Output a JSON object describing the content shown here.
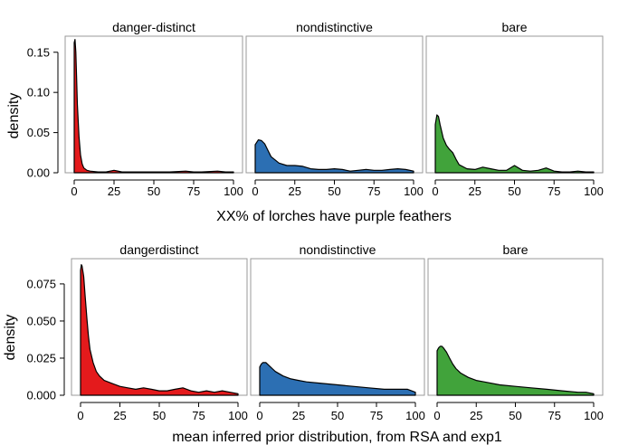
{
  "chart_data": [
    {
      "type": "area",
      "xlabel": "XX% of lorches have purple feathers",
      "ylabel": "density",
      "xlim": [
        0,
        100
      ],
      "ylim": [
        0,
        0.17
      ],
      "x_ticks": [
        0,
        25,
        50,
        75,
        100
      ],
      "y_ticks": [
        0,
        0.05,
        0.1,
        0.15
      ],
      "y_tick_labels": [
        "0.00",
        "0.05",
        "0.10",
        "0.15"
      ],
      "grid": false,
      "legend": "none",
      "panels": [
        {
          "name": "danger-distinct",
          "color": "#e41a1c",
          "x": [
            0,
            0.5,
            1,
            1.5,
            2,
            3,
            4,
            5,
            6,
            8,
            10,
            15,
            20,
            25,
            30,
            40,
            50,
            60,
            70,
            75,
            80,
            90,
            95,
            100
          ],
          "y": [
            0.162,
            0.166,
            0.15,
            0.12,
            0.085,
            0.045,
            0.022,
            0.011,
            0.006,
            0.003,
            0.002,
            0.001,
            0.001,
            0.003,
            0.001,
            0.001,
            0.001,
            0.001,
            0.002,
            0.001,
            0.001,
            0.002,
            0.001,
            0.001
          ]
        },
        {
          "name": "nondistinctive",
          "color": "#2c6fb3",
          "x": [
            0,
            2,
            4,
            6,
            8,
            10,
            15,
            20,
            25,
            30,
            35,
            40,
            45,
            50,
            55,
            60,
            65,
            70,
            75,
            80,
            85,
            90,
            95,
            100
          ],
          "y": [
            0.035,
            0.041,
            0.04,
            0.036,
            0.028,
            0.02,
            0.012,
            0.009,
            0.009,
            0.008,
            0.005,
            0.004,
            0.004,
            0.005,
            0.004,
            0.002,
            0.003,
            0.004,
            0.003,
            0.003,
            0.004,
            0.005,
            0.004,
            0.002
          ]
        },
        {
          "name": "bare",
          "color": "#41a33b",
          "x": [
            0,
            1,
            2,
            3,
            5,
            7,
            9,
            11,
            13,
            15,
            20,
            25,
            30,
            35,
            40,
            45,
            50,
            55,
            60,
            65,
            70,
            75,
            80,
            85,
            90,
            95,
            100
          ],
          "y": [
            0.06,
            0.072,
            0.07,
            0.06,
            0.043,
            0.034,
            0.029,
            0.025,
            0.017,
            0.01,
            0.005,
            0.004,
            0.007,
            0.005,
            0.003,
            0.003,
            0.009,
            0.003,
            0.002,
            0.003,
            0.006,
            0.002,
            0.001,
            0.001,
            0.002,
            0.001,
            0.001
          ]
        }
      ]
    },
    {
      "type": "area",
      "xlabel": "mean inferred prior distribution, from RSA and exp1",
      "ylabel": "density",
      "xlim": [
        0,
        100
      ],
      "ylim": [
        0,
        0.092
      ],
      "x_ticks": [
        0,
        25,
        50,
        75,
        100
      ],
      "y_ticks": [
        0,
        0.025,
        0.05,
        0.075
      ],
      "y_tick_labels": [
        "0.000",
        "0.025",
        "0.050",
        "0.075"
      ],
      "grid": false,
      "legend": "none",
      "panels": [
        {
          "name": "dangerdistinct",
          "color": "#e41a1c",
          "x": [
            0,
            0.5,
            1,
            2,
            3,
            4,
            5,
            6,
            8,
            10,
            12,
            15,
            20,
            25,
            30,
            35,
            40,
            45,
            50,
            55,
            60,
            65,
            70,
            75,
            80,
            85,
            90,
            95,
            100
          ],
          "y": [
            0.084,
            0.088,
            0.087,
            0.08,
            0.066,
            0.052,
            0.04,
            0.031,
            0.022,
            0.016,
            0.013,
            0.01,
            0.008,
            0.006,
            0.005,
            0.004,
            0.005,
            0.004,
            0.003,
            0.003,
            0.004,
            0.005,
            0.003,
            0.002,
            0.003,
            0.002,
            0.003,
            0.002,
            0.001
          ]
        },
        {
          "name": "nondistinctive",
          "color": "#2c6fb3",
          "x": [
            0,
            1,
            2,
            4,
            6,
            8,
            10,
            15,
            20,
            25,
            30,
            40,
            50,
            60,
            70,
            80,
            90,
            95,
            100
          ],
          "y": [
            0.019,
            0.021,
            0.022,
            0.022,
            0.02,
            0.018,
            0.016,
            0.013,
            0.011,
            0.01,
            0.009,
            0.008,
            0.007,
            0.006,
            0.005,
            0.004,
            0.004,
            0.004,
            0.002
          ]
        },
        {
          "name": "bare",
          "color": "#41a33b",
          "x": [
            0,
            1,
            2,
            3,
            4,
            6,
            8,
            10,
            12,
            15,
            20,
            25,
            30,
            40,
            50,
            60,
            70,
            80,
            90,
            95,
            100
          ],
          "y": [
            0.03,
            0.032,
            0.033,
            0.033,
            0.032,
            0.029,
            0.025,
            0.021,
            0.018,
            0.015,
            0.012,
            0.01,
            0.009,
            0.007,
            0.006,
            0.005,
            0.004,
            0.003,
            0.002,
            0.002,
            0.001
          ]
        }
      ]
    }
  ]
}
